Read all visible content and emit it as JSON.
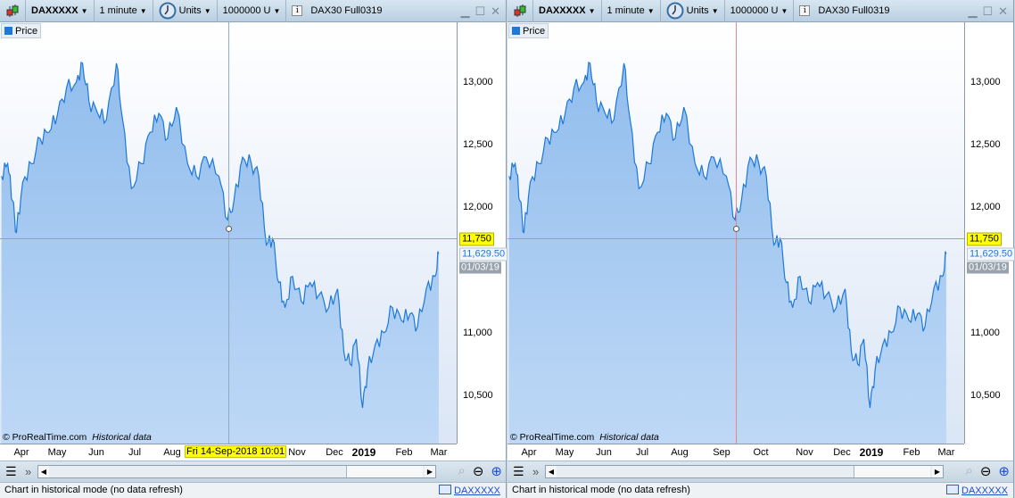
{
  "colors": {
    "line": "#1e78d8",
    "fill_top": "#7fb2ea",
    "fill_bottom": "#b9d6f6",
    "crosshair": "#f08080",
    "highlight": "#ffff00"
  },
  "toolbar": {
    "symbol": "DAXXXXX",
    "timeframe": "1 minute",
    "units_label": "Units",
    "size": "1000000 U",
    "instrument": "DAX30 Full0319",
    "chart_icon": "candlestick-icon",
    "clock_icon": "clock-icon",
    "info_icon": "info-icon"
  },
  "legend": {
    "series": "Price"
  },
  "credit": {
    "site": "© ProRealTime.com",
    "mode": "Historical data"
  },
  "status": {
    "text": "Chart in historical mode (no data refresh)",
    "link": "DAXXXXX"
  },
  "price_axis": {
    "ticks": [
      "13,000",
      "12,500",
      "12,000",
      "11,000",
      "10,500"
    ],
    "tick_values": [
      13000,
      12500,
      12000,
      11000,
      10500
    ],
    "crosshair_value": "11,750",
    "crosshair_price": 11750,
    "last_price": "11,629.50",
    "last_date": "01/03/19"
  },
  "panels": [
    {
      "x_labels": [
        "Apr",
        "May",
        "Jun",
        "Jul",
        "Aug",
        "Nov",
        "Dec",
        "2019",
        "Feb",
        "Mar"
      ],
      "crosshair_label": "Fri 14-Sep-2018 10:01",
      "crosshair_date": "2018-09-14"
    },
    {
      "x_labels": [
        "Apr",
        "May",
        "Jun",
        "Jul",
        "Aug",
        "Sep",
        "Oct",
        "Nov",
        "Dec",
        "2019",
        "Feb",
        "Mar"
      ],
      "crosshair_date": "2018-09-14"
    }
  ],
  "chart_data": {
    "type": "area",
    "ylim": [
      10250,
      13350
    ],
    "x": [
      "2018-03-16",
      "2018-03-21",
      "2018-03-25",
      "2018-03-28",
      "2018-04-02",
      "2018-04-09",
      "2018-04-16",
      "2018-04-23",
      "2018-04-30",
      "2018-05-07",
      "2018-05-15",
      "2018-05-20",
      "2018-05-25",
      "2018-06-01",
      "2018-06-08",
      "2018-06-16",
      "2018-06-21",
      "2018-06-28",
      "2018-07-06",
      "2018-07-13",
      "2018-07-20",
      "2018-07-27",
      "2018-08-03",
      "2018-08-12",
      "2018-08-19",
      "2018-08-27",
      "2018-09-06",
      "2018-09-13",
      "2018-09-18",
      "2018-09-25",
      "2018-10-02",
      "2018-10-08",
      "2018-10-14",
      "2018-10-19",
      "2018-10-24",
      "2018-10-29",
      "2018-11-04",
      "2018-11-11",
      "2018-11-18",
      "2018-11-25",
      "2018-12-03",
      "2018-12-10",
      "2018-12-15",
      "2018-12-20",
      "2018-12-25",
      "2018-12-30",
      "2019-01-03",
      "2019-01-09",
      "2019-01-16",
      "2019-01-23",
      "2019-01-30",
      "2019-02-06",
      "2019-02-12",
      "2019-02-19",
      "2019-02-26",
      "2019-03-01"
    ],
    "values": [
      12250,
      12350,
      12050,
      11800,
      12200,
      12350,
      12550,
      12600,
      12750,
      12950,
      13000,
      13150,
      12850,
      12750,
      12700,
      13150,
      12700,
      12150,
      12350,
      12600,
      12750,
      12550,
      12800,
      12350,
      12250,
      12400,
      12250,
      11900,
      12050,
      12400,
      12350,
      12250,
      11700,
      11750,
      11400,
      11200,
      11450,
      11250,
      11400,
      11300,
      11200,
      11350,
      10850,
      10750,
      10950,
      10400,
      10700,
      10900,
      11000,
      11200,
      11100,
      11150,
      11050,
      11350,
      11450,
      11629.5
    ]
  }
}
